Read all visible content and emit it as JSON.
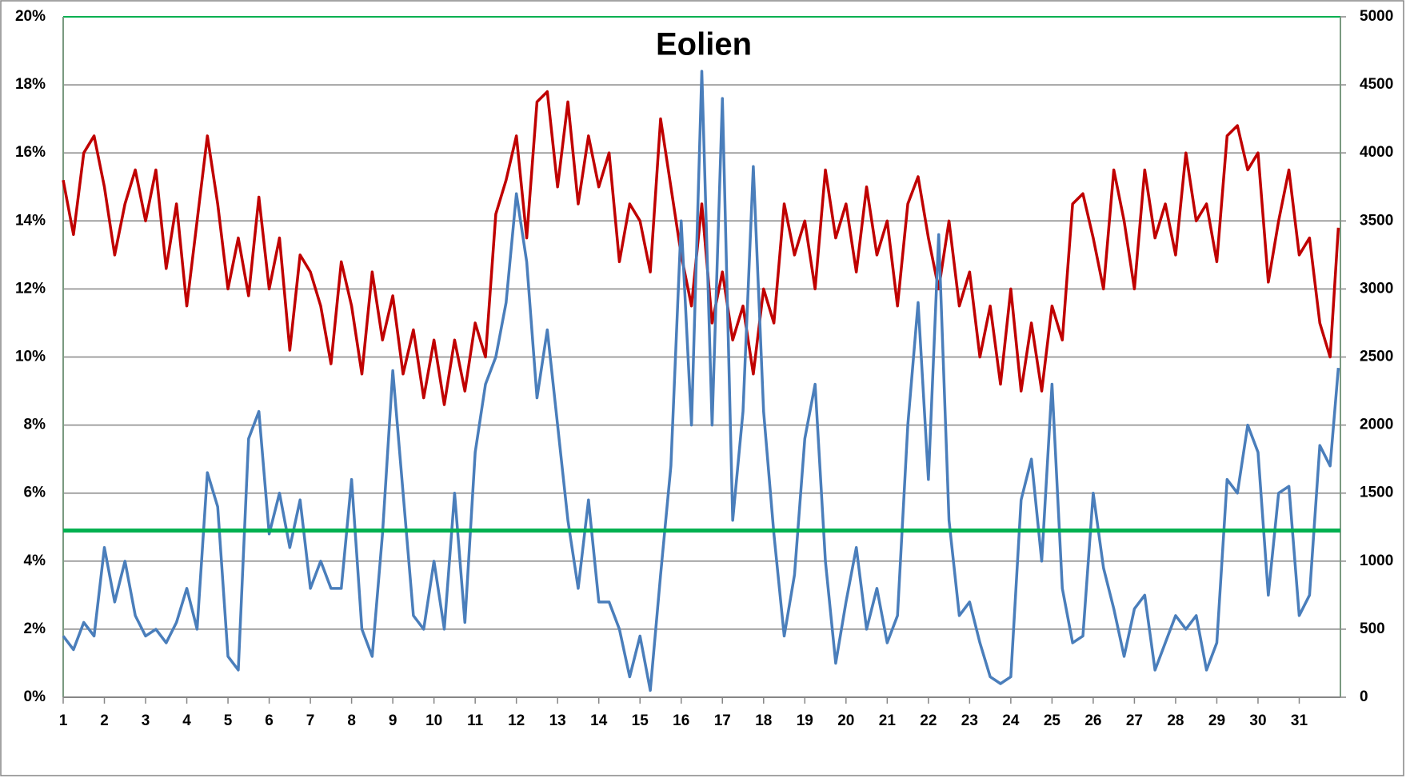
{
  "chart_data": {
    "type": "line",
    "title": "Eolien",
    "x": [
      1,
      1.25,
      1.5,
      1.75,
      2,
      2.25,
      2.5,
      2.75,
      3,
      3.25,
      3.5,
      3.75,
      4,
      4.25,
      4.5,
      4.75,
      5,
      5.25,
      5.5,
      5.75,
      6,
      6.25,
      6.5,
      6.75,
      7,
      7.25,
      7.5,
      7.75,
      8,
      8.25,
      8.5,
      8.75,
      9,
      9.25,
      9.5,
      9.75,
      10,
      10.25,
      10.5,
      10.75,
      11,
      11.25,
      11.5,
      11.75,
      12,
      12.25,
      12.5,
      12.75,
      13,
      13.25,
      13.5,
      13.75,
      14,
      14.25,
      14.5,
      14.75,
      15,
      15.25,
      15.5,
      15.75,
      16,
      16.25,
      16.5,
      16.75,
      17,
      17.25,
      17.5,
      17.75,
      18,
      18.25,
      18.5,
      18.75,
      19,
      19.25,
      19.5,
      19.75,
      20,
      20.25,
      20.5,
      20.75,
      21,
      21.25,
      21.5,
      21.75,
      22,
      22.25,
      22.5,
      22.75,
      23,
      23.25,
      23.5,
      23.75,
      24,
      24.25,
      24.5,
      24.75,
      25,
      25.25,
      25.5,
      25.75,
      26,
      26.25,
      26.5,
      26.75,
      27,
      27.25,
      27.5,
      27.75,
      28,
      28.25,
      28.5,
      28.75,
      29,
      29.25,
      29.5,
      29.75,
      30,
      30.25,
      30.5,
      30.75,
      31,
      31.25,
      31.5,
      31.75,
      31.95
    ],
    "series": [
      {
        "color": "#c00000",
        "values": [
          15.2,
          13.6,
          16.0,
          16.5,
          15.0,
          13.0,
          14.5,
          15.5,
          14.0,
          15.5,
          12.6,
          14.5,
          11.5,
          14.0,
          16.5,
          14.5,
          12.0,
          13.5,
          11.8,
          14.7,
          12.0,
          13.5,
          10.2,
          13.0,
          12.5,
          11.5,
          9.8,
          12.8,
          11.5,
          9.5,
          12.5,
          10.5,
          11.8,
          9.5,
          10.8,
          8.8,
          10.5,
          8.6,
          10.5,
          9.0,
          11.0,
          10.0,
          14.2,
          15.2,
          16.5,
          13.5,
          17.5,
          17.8,
          15.0,
          17.5,
          14.5,
          16.5,
          15.0,
          16.0,
          12.8,
          14.5,
          14.0,
          12.5,
          17.0,
          15.0,
          13.0,
          11.5,
          14.5,
          11.0,
          12.5,
          10.5,
          11.5,
          9.5,
          12.0,
          11.0,
          14.5,
          13.0,
          14.0,
          12.0,
          15.5,
          13.5,
          14.5,
          12.5,
          15.0,
          13.0,
          14.0,
          11.5,
          14.5,
          15.3,
          13.5,
          12.0,
          14.0,
          11.5,
          12.5,
          10.0,
          11.5,
          9.2,
          12.0,
          9.0,
          11.0,
          9.0,
          11.5,
          10.5,
          14.5,
          14.8,
          13.5,
          12.0,
          15.5,
          14.0,
          12.0,
          15.5,
          13.5,
          14.5,
          13.0,
          16.0,
          14.0,
          14.5,
          12.8,
          16.5,
          16.8,
          15.5,
          16.0,
          12.2,
          14.0,
          15.5,
          13.0,
          13.5,
          11.0,
          10.0,
          13.8
        ]
      },
      {
        "color": "#4a7ebb",
        "axis": "y2",
        "values": [
          450,
          350,
          550,
          450,
          1100,
          700,
          1000,
          600,
          450,
          500,
          400,
          550,
          800,
          500,
          1650,
          1400,
          300,
          200,
          1900,
          2100,
          1200,
          1500,
          1100,
          1450,
          800,
          1000,
          800,
          800,
          1600,
          500,
          300,
          1200,
          2400,
          1500,
          600,
          500,
          1000,
          500,
          1500,
          550,
          1800,
          2300,
          2500,
          2900,
          3700,
          3200,
          2200,
          2700,
          2000,
          1300,
          800,
          1450,
          700,
          700,
          500,
          150,
          450,
          50,
          900,
          1700,
          3500,
          2000,
          4600,
          2000,
          4400,
          1300,
          2100,
          3900,
          2100,
          1200,
          450,
          900,
          1900,
          2300,
          1000,
          250,
          700,
          1100,
          500,
          800,
          400,
          600,
          2000,
          2900,
          1600,
          3400,
          1300,
          600,
          700,
          400,
          150,
          100,
          150,
          1450,
          1750,
          1000,
          2300,
          800,
          400,
          450,
          1500,
          950,
          650,
          300,
          650,
          750,
          200,
          400,
          600,
          500,
          600,
          200,
          400,
          1600,
          1500,
          2000,
          1800,
          750,
          1500,
          1550,
          600,
          750,
          1850,
          1700,
          2420
        ]
      }
    ],
    "hline": {
      "value": 4.9,
      "color": "#00b050"
    },
    "xlim": [
      1,
      32
    ],
    "xticks": [
      1,
      2,
      3,
      4,
      5,
      6,
      7,
      8,
      9,
      10,
      11,
      12,
      13,
      14,
      15,
      16,
      17,
      18,
      19,
      20,
      21,
      22,
      23,
      24,
      25,
      26,
      27,
      28,
      29,
      30,
      31
    ],
    "ylim": [
      0,
      20
    ],
    "yticks": [
      {
        "value": 0,
        "label": "0%"
      },
      {
        "value": 2,
        "label": "2%"
      },
      {
        "value": 4,
        "label": "4%"
      },
      {
        "value": 6,
        "label": "6%"
      },
      {
        "value": 8,
        "label": "8%"
      },
      {
        "value": 10,
        "label": "10%"
      },
      {
        "value": 12,
        "label": "12%"
      },
      {
        "value": 14,
        "label": "14%"
      },
      {
        "value": 16,
        "label": "16%"
      },
      {
        "value": 18,
        "label": "18%"
      },
      {
        "value": 20,
        "label": "20%"
      }
    ],
    "y2lim": [
      0,
      5000
    ],
    "y2ticks": [
      0,
      500,
      1000,
      1500,
      2000,
      2500,
      3000,
      3500,
      4000,
      4500,
      5000
    ],
    "grid": true
  }
}
